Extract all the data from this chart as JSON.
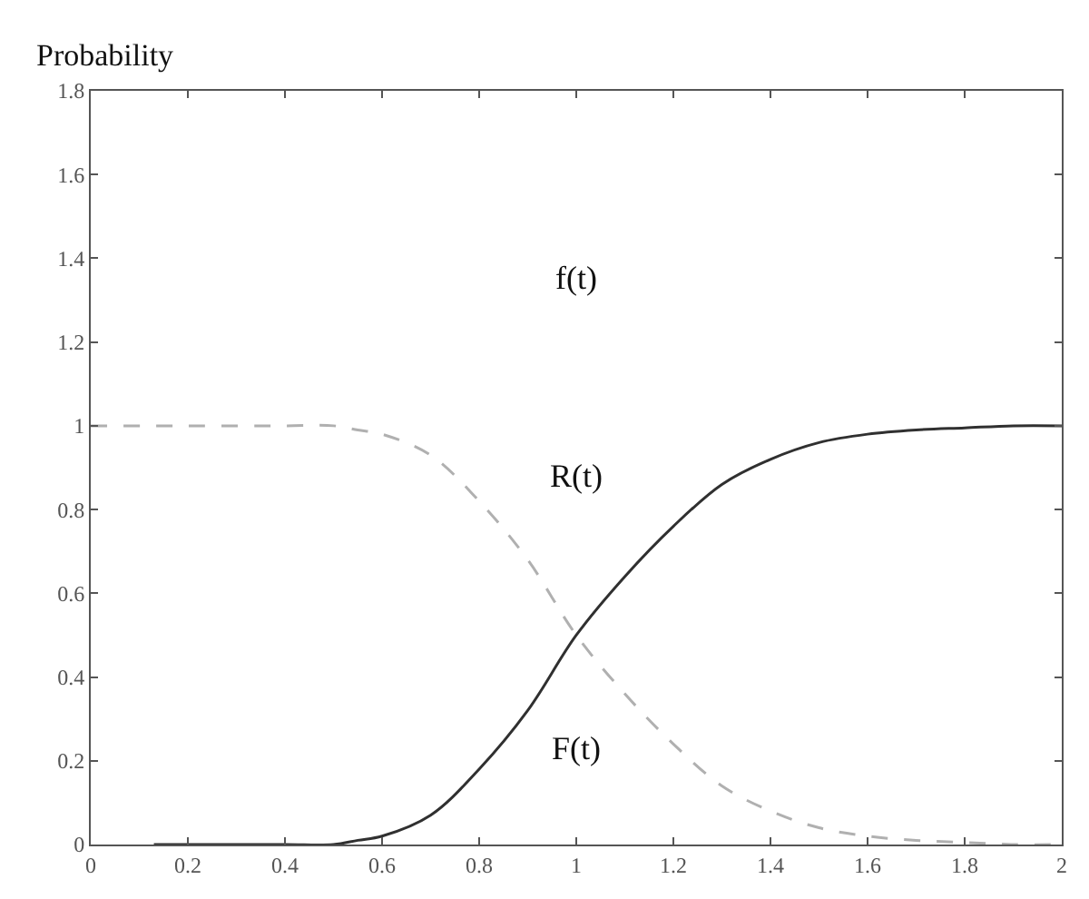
{
  "chart_data": {
    "type": "line",
    "ylabel": "Probability",
    "xlim": [
      0,
      2
    ],
    "xticks": [
      0,
      0.2,
      0.4,
      0.6,
      0.8,
      1,
      1.2,
      1.4,
      1.6,
      1.8,
      2
    ],
    "ylim": [
      0,
      1.8
    ],
    "yticks": [
      0,
      0.2,
      0.4,
      0.6,
      0.8,
      1,
      1.2,
      1.4,
      1.6,
      1.8
    ],
    "legend": false,
    "series": [
      {
        "name": "R(t)",
        "color": "#b0b0b0",
        "line_style": "dashed",
        "x": [
          0,
          0.2,
          0.4,
          0.5,
          0.55,
          0.6,
          0.7,
          0.8,
          0.9,
          1.0,
          1.1,
          1.2,
          1.3,
          1.4,
          1.5,
          1.6,
          1.7,
          1.8,
          1.9,
          2
        ],
        "values": [
          1,
          1,
          1,
          1,
          0.99,
          0.98,
          0.93,
          0.82,
          0.68,
          0.5,
          0.36,
          0.24,
          0.14,
          0.08,
          0.04,
          0.02,
          0.01,
          0.005,
          0,
          0
        ]
      },
      {
        "name": "F(t)",
        "color": "#303030",
        "line_style": "solid",
        "x": [
          0.13,
          0.2,
          0.4,
          0.5,
          0.55,
          0.6,
          0.7,
          0.8,
          0.9,
          1.0,
          1.1,
          1.2,
          1.3,
          1.4,
          1.5,
          1.6,
          1.7,
          1.8,
          1.9,
          2
        ],
        "values": [
          0,
          0,
          0,
          0,
          0.01,
          0.02,
          0.07,
          0.18,
          0.32,
          0.5,
          0.64,
          0.76,
          0.86,
          0.92,
          0.96,
          0.98,
          0.99,
          0.995,
          1,
          1
        ]
      }
    ],
    "annotations": [
      "f(t)"
    ]
  }
}
